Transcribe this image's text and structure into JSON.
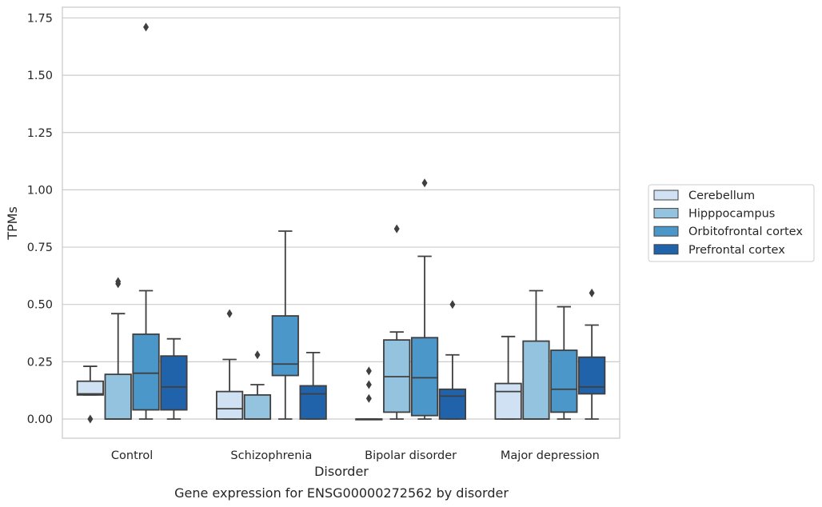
{
  "chart_data": {
    "type": "boxplot",
    "title": "Gene expression for ENSG00000272562 by disorder",
    "xlabel": "Disorder",
    "ylabel": "TPMs",
    "ylim": [
      -0.085,
      1.8
    ],
    "yticks": [
      "0.00",
      "0.25",
      "0.50",
      "0.75",
      "1.00",
      "1.25",
      "1.50",
      "1.75"
    ],
    "ytick_values": [
      0,
      0.25,
      0.5,
      0.75,
      1.0,
      1.25,
      1.5,
      1.75
    ],
    "grid": "horizontal",
    "legend_placement": "right",
    "categories": [
      "Control",
      "Schizophrenia",
      "Bipolar disorder",
      "Major depression"
    ],
    "series": [
      {
        "name": "Cerebellum",
        "color": "#cfe1f2",
        "boxes": [
          {
            "q1": 0.105,
            "median": 0.11,
            "q3": 0.165,
            "whislo": 0.105,
            "whishi": 0.23,
            "fliers": [
              0.0
            ]
          },
          {
            "q1": 0.0,
            "median": 0.045,
            "q3": 0.12,
            "whislo": 0.0,
            "whishi": 0.26,
            "fliers": [
              0.46
            ]
          },
          {
            "q1": 0.0,
            "median": 0.0,
            "q3": 0.0,
            "whislo": 0.0,
            "whishi": 0.0,
            "fliers": [
              0.09,
              0.15,
              0.21
            ]
          },
          {
            "q1": 0.0,
            "median": 0.12,
            "q3": 0.155,
            "whislo": 0.0,
            "whishi": 0.36,
            "fliers": []
          }
        ]
      },
      {
        "name": "Hipppocampus",
        "color": "#93c3df",
        "boxes": [
          {
            "q1": 0.0,
            "median": 0.0,
            "q3": 0.195,
            "whislo": 0.0,
            "whishi": 0.46,
            "fliers": [
              0.59,
              0.6
            ]
          },
          {
            "q1": 0.0,
            "median": 0.0,
            "q3": 0.105,
            "whislo": 0.0,
            "whishi": 0.15,
            "fliers": [
              0.28
            ]
          },
          {
            "q1": 0.03,
            "median": 0.185,
            "q3": 0.345,
            "whislo": 0.0,
            "whishi": 0.38,
            "fliers": [
              0.83
            ]
          },
          {
            "q1": 0.0,
            "median": 0.0,
            "q3": 0.34,
            "whislo": 0.0,
            "whishi": 0.56,
            "fliers": []
          }
        ]
      },
      {
        "name": "Orbitofrontal cortex",
        "color": "#4b97c9",
        "boxes": [
          {
            "q1": 0.04,
            "median": 0.2,
            "q3": 0.37,
            "whislo": 0.0,
            "whishi": 0.56,
            "fliers": [
              1.71
            ]
          },
          {
            "q1": 0.19,
            "median": 0.24,
            "q3": 0.45,
            "whislo": 0.0,
            "whishi": 0.82,
            "fliers": []
          },
          {
            "q1": 0.015,
            "median": 0.18,
            "q3": 0.355,
            "whislo": 0.0,
            "whishi": 0.71,
            "fliers": [
              1.03
            ]
          },
          {
            "q1": 0.03,
            "median": 0.13,
            "q3": 0.3,
            "whislo": 0.0,
            "whishi": 0.49,
            "fliers": []
          }
        ]
      },
      {
        "name": "Prefrontal cortex",
        "color": "#2163aa",
        "boxes": [
          {
            "q1": 0.04,
            "median": 0.14,
            "q3": 0.275,
            "whislo": 0.0,
            "whishi": 0.35,
            "fliers": []
          },
          {
            "q1": 0.0,
            "median": 0.11,
            "q3": 0.145,
            "whislo": 0.0,
            "whishi": 0.29,
            "fliers": []
          },
          {
            "q1": 0.0,
            "median": 0.1,
            "q3": 0.13,
            "whislo": 0.0,
            "whishi": 0.28,
            "fliers": [
              0.5
            ]
          },
          {
            "q1": 0.11,
            "median": 0.14,
            "q3": 0.27,
            "whislo": 0.0,
            "whishi": 0.41,
            "fliers": [
              0.55
            ]
          }
        ]
      }
    ]
  }
}
